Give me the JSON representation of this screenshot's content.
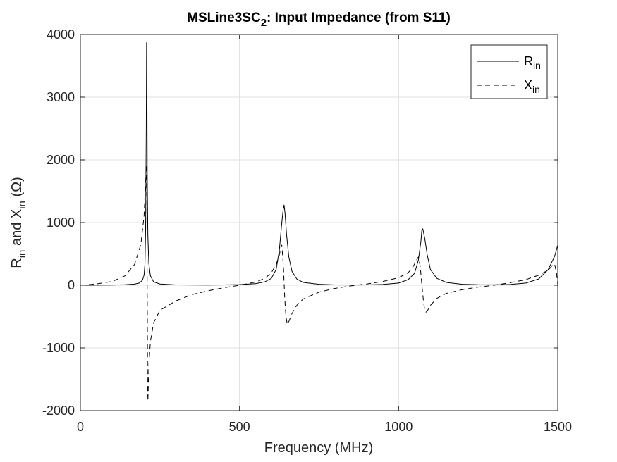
{
  "chart_data": {
    "type": "line",
    "title": {
      "main": "MSLine3SC",
      "sub": "2",
      "rest": ": Input Impedance (from S11)"
    },
    "xlabel": "Frequency (MHz)",
    "ylabel": {
      "r": "R",
      "r_sub": "in",
      "mid": " and X",
      "x_sub": "in",
      "unit": " (Ω)"
    },
    "xlim": [
      0,
      1500
    ],
    "ylim": [
      -2000,
      4000
    ],
    "x_ticks": [
      0,
      500,
      1000,
      1500
    ],
    "y_ticks": [
      -2000,
      -1000,
      0,
      1000,
      2000,
      3000,
      4000
    ],
    "x_tick_labels": [
      "0",
      "500",
      "1000",
      "1500"
    ],
    "y_tick_labels": [
      "-2000",
      "-1000",
      "0",
      "1000",
      "2000",
      "3000",
      "4000"
    ],
    "grid": true,
    "legend_position": "top-right",
    "series": [
      {
        "name": "R",
        "name_sub": "in",
        "line_style": "solid",
        "color": "#000000",
        "x": [
          0,
          50,
          100,
          140,
          170,
          185,
          195,
          200,
          203,
          205,
          207,
          208,
          209,
          210,
          212,
          215,
          220,
          230,
          250,
          300,
          350,
          400,
          450,
          500,
          550,
          580,
          600,
          615,
          625,
          632,
          637,
          640,
          643,
          648,
          655,
          665,
          680,
          700,
          750,
          800,
          850,
          900,
          950,
          1000,
          1030,
          1050,
          1062,
          1070,
          1073,
          1076,
          1082,
          1090,
          1100,
          1120,
          1150,
          1200,
          1250,
          1300,
          1350,
          1400,
          1440,
          1470,
          1490,
          1500
        ],
        "y": [
          0,
          1,
          3,
          8,
          18,
          35,
          80,
          160,
          350,
          900,
          2500,
          3870,
          3500,
          1800,
          800,
          350,
          150,
          55,
          20,
          6,
          4,
          3,
          5,
          10,
          25,
          55,
          110,
          250,
          550,
          950,
          1200,
          1280,
          1150,
          800,
          450,
          220,
          100,
          45,
          15,
          6,
          4,
          5,
          12,
          35,
          90,
          190,
          400,
          700,
          880,
          900,
          750,
          480,
          250,
          110,
          45,
          15,
          8,
          7,
          12,
          35,
          100,
          250,
          460,
          640
        ]
      },
      {
        "name": "X",
        "name_sub": "in",
        "line_style": "dashed",
        "color": "#000000",
        "x": [
          0,
          50,
          100,
          140,
          170,
          190,
          200,
          205,
          207,
          208,
          209,
          209.6,
          210.4,
          211,
          212,
          213,
          214,
          216,
          220,
          230,
          250,
          300,
          350,
          400,
          450,
          500,
          550,
          580,
          600,
          615,
          625,
          630,
          633,
          638,
          642,
          646,
          650,
          655,
          665,
          680,
          700,
          750,
          800,
          850,
          900,
          950,
          1000,
          1030,
          1045,
          1055,
          1062,
          1068,
          1073,
          1078,
          1082,
          1086,
          1090,
          1100,
          1120,
          1150,
          1200,
          1250,
          1300,
          1350,
          1400,
          1440,
          1470,
          1482,
          1490,
          1496,
          1500
        ],
        "y": [
          0,
          20,
          60,
          150,
          330,
          650,
          1100,
          1650,
          1900,
          1850,
          1350,
          300,
          -500,
          -1400,
          -1850,
          -1700,
          -1500,
          -1200,
          -900,
          -600,
          -400,
          -250,
          -150,
          -90,
          -40,
          0,
          50,
          110,
          200,
          330,
          480,
          600,
          640,
          300,
          -200,
          -500,
          -620,
          -580,
          -450,
          -320,
          -220,
          -110,
          -50,
          -10,
          20,
          60,
          120,
          200,
          290,
          390,
          450,
          300,
          0,
          -250,
          -400,
          -430,
          -410,
          -320,
          -210,
          -130,
          -70,
          -30,
          0,
          40,
          90,
          160,
          240,
          310,
          340,
          200,
          0
        ]
      }
    ]
  }
}
